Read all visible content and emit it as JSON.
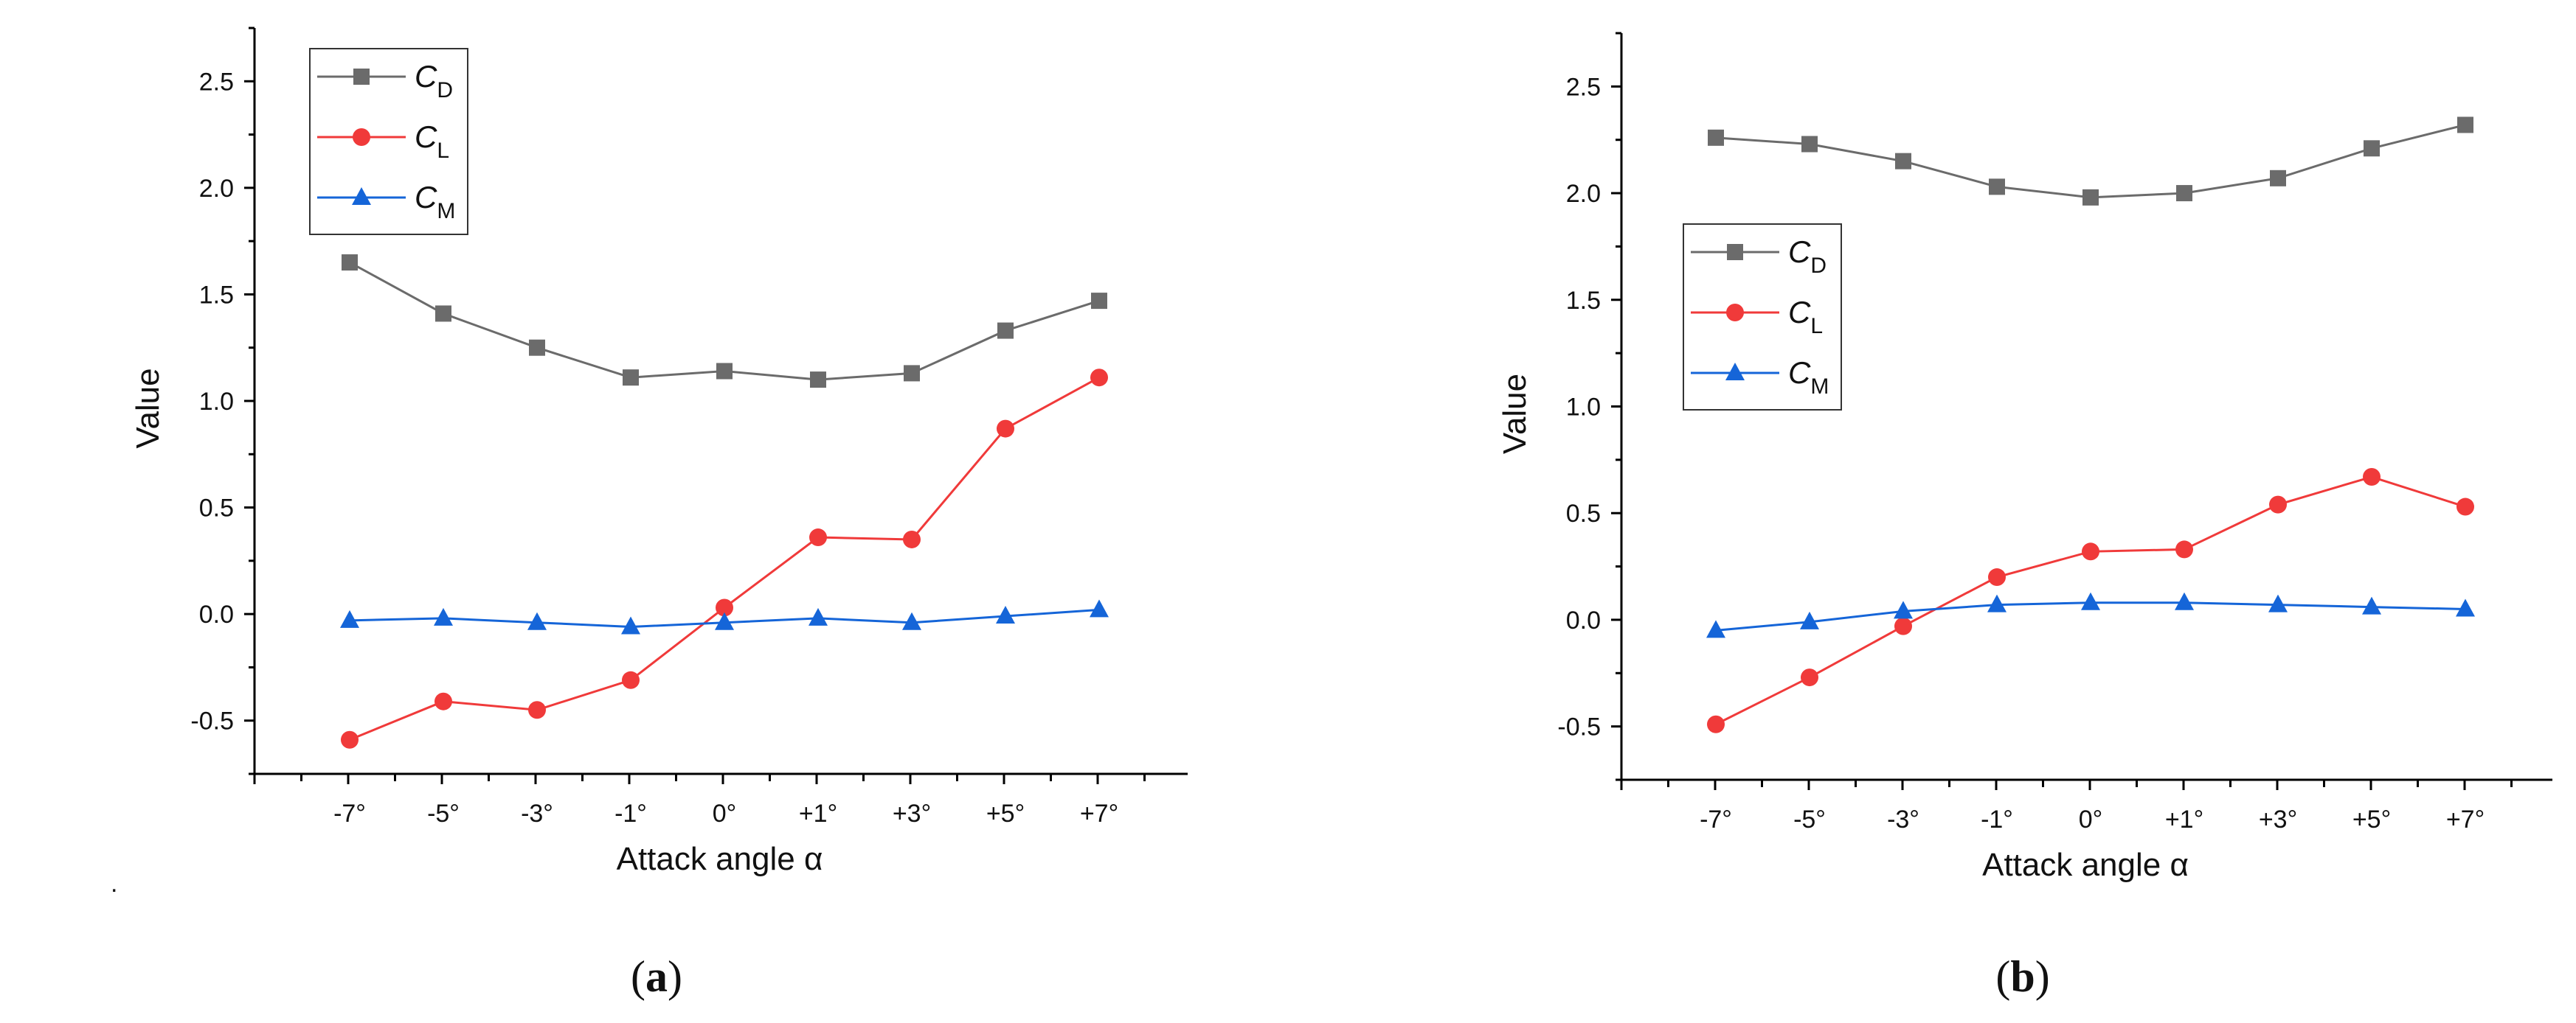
{
  "chart_data": [
    {
      "type": "line",
      "panel_label": "a",
      "xlabel": "Attack angle α",
      "ylabel": "Value",
      "categories": [
        "-7°",
        "-5°",
        "-3°",
        "-1°",
        "0°",
        "+1°",
        "+3°",
        "+5°",
        "+7°"
      ],
      "ylim": [
        -0.75,
        2.75
      ],
      "yticks": [
        "-0.5",
        "0.0",
        "0.5",
        "1.0",
        "1.5",
        "2.0",
        "2.5"
      ],
      "ytick_values": [
        -0.5,
        0.0,
        0.5,
        1.0,
        1.5,
        2.0,
        2.5
      ],
      "legend_position": "top-left",
      "series": [
        {
          "name": "C",
          "sub": "D",
          "color": "#6b6b6b",
          "marker": "square",
          "values": [
            1.65,
            1.41,
            1.25,
            1.11,
            1.14,
            1.1,
            1.13,
            1.33,
            1.47
          ]
        },
        {
          "name": "C",
          "sub": "L",
          "color": "#f03a3a",
          "marker": "circle",
          "values": [
            -0.59,
            -0.41,
            -0.45,
            -0.31,
            0.03,
            0.36,
            0.35,
            0.87,
            1.11
          ]
        },
        {
          "name": "C",
          "sub": "M",
          "color": "#1565d8",
          "marker": "triangle",
          "values": [
            -0.03,
            -0.02,
            -0.04,
            -0.06,
            -0.04,
            -0.02,
            -0.04,
            -0.01,
            0.02
          ]
        }
      ]
    },
    {
      "type": "line",
      "panel_label": "b",
      "xlabel": "Attack angle α",
      "ylabel": "Value",
      "categories": [
        "-7°",
        "-5°",
        "-3°",
        "-1°",
        "0°",
        "+1°",
        "+3°",
        "+5°",
        "+7°"
      ],
      "ylim": [
        -0.75,
        2.75
      ],
      "yticks": [
        "-0.5",
        "0.0",
        "0.5",
        "1.0",
        "1.5",
        "2.0",
        "2.5"
      ],
      "ytick_values": [
        -0.5,
        0.0,
        0.5,
        1.0,
        1.5,
        2.0,
        2.5
      ],
      "legend_position": "middle-left",
      "series": [
        {
          "name": "C",
          "sub": "D",
          "color": "#6b6b6b",
          "marker": "square",
          "values": [
            2.26,
            2.23,
            2.15,
            2.03,
            1.98,
            2.0,
            2.07,
            2.21,
            2.32
          ]
        },
        {
          "name": "C",
          "sub": "L",
          "color": "#f03a3a",
          "marker": "circle",
          "values": [
            -0.49,
            -0.27,
            -0.03,
            0.2,
            0.32,
            0.33,
            0.54,
            0.67,
            0.53
          ]
        },
        {
          "name": "C",
          "sub": "M",
          "color": "#1565d8",
          "marker": "triangle",
          "values": [
            -0.05,
            -0.01,
            0.04,
            0.07,
            0.08,
            0.08,
            0.07,
            0.06,
            0.05
          ]
        }
      ]
    }
  ],
  "stray_mark": "."
}
